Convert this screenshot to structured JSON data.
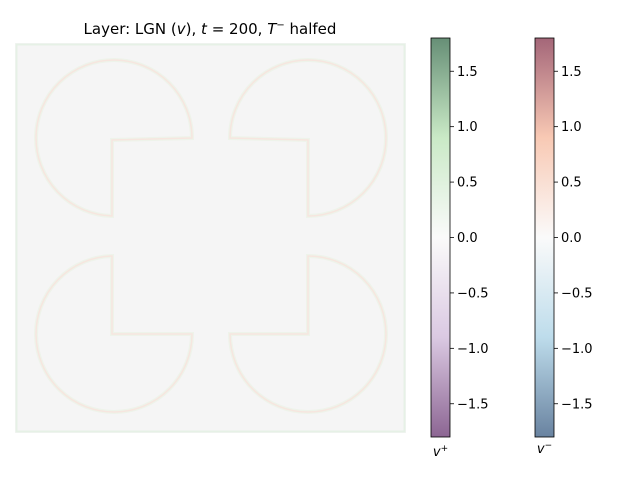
{
  "chart_data": {
    "type": "heatmap",
    "title_parts": {
      "prefix": "Layer: LGN (",
      "var": "v",
      "mid": "), ",
      "t": "t",
      "eq": " = 200, ",
      "T": "T",
      "sup": "−",
      "suffix": " halfed"
    },
    "image": {
      "description_values": "four semi-circle-and-square outline shapes with faint green/red edges on a near-zero gray field",
      "background_value": 0.0,
      "edge_value_abs": 0.15
    },
    "colorbars": [
      {
        "name": "v+",
        "label_base": "v",
        "label_sup": "+",
        "colormap": "PRGn",
        "colors": {
          "low": "#40004b",
          "mid_low": "#c2a5cf",
          "center": "#f7f7f7",
          "mid_high": "#a6dba0",
          "high": "#00441b"
        },
        "vmin": -1.8,
        "vmax": 1.8,
        "ticks": [
          1.5,
          1.0,
          0.5,
          0.0,
          -0.5,
          -1.0,
          -1.5
        ],
        "tick_labels": [
          "1.5",
          "1.0",
          "0.5",
          "0.0",
          "−0.5",
          "−1.0",
          "−1.5"
        ]
      },
      {
        "name": "v-",
        "label_base": "v",
        "label_sup": "−",
        "colormap": "RdBu_r",
        "colors": {
          "low": "#053061",
          "mid_low": "#92c5de",
          "center": "#f7f7f7",
          "mid_high": "#f4a582",
          "high": "#67001f"
        },
        "vmin": -1.8,
        "vmax": 1.8,
        "ticks": [
          1.5,
          1.0,
          0.5,
          0.0,
          -0.5,
          -1.0,
          -1.5
        ],
        "tick_labels": [
          "1.5",
          "1.0",
          "0.5",
          "0.0",
          "−0.5",
          "−1.0",
          "−1.5"
        ]
      }
    ]
  }
}
